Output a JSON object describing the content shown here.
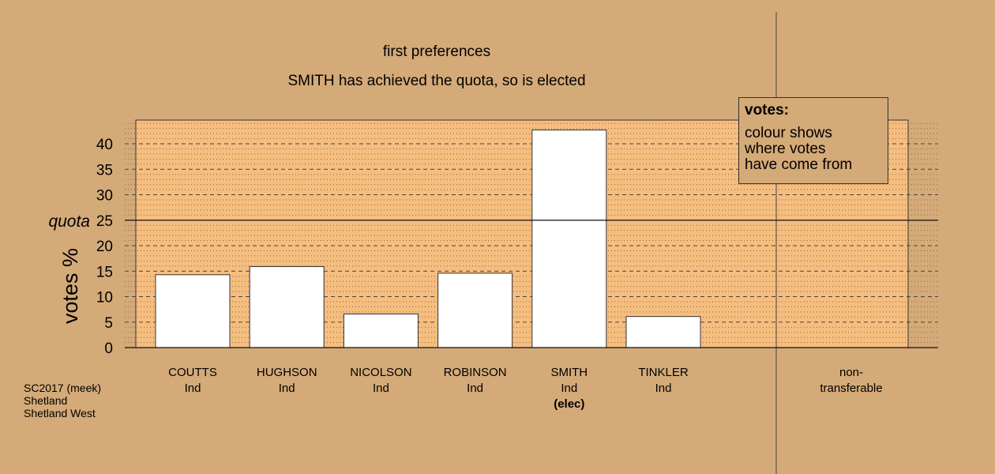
{
  "chart_data": {
    "type": "bar",
    "title": "first preferences",
    "subtitle": "SMITH has achieved the quota, so is elected",
    "ylabel": "votes %",
    "ylim": [
      0,
      45
    ],
    "yticks": [
      0,
      5,
      10,
      15,
      20,
      25,
      30,
      35,
      40
    ],
    "quota": 25,
    "quota_label": "quota",
    "categories": [
      {
        "name": "COUTTS",
        "party": "Ind",
        "note": ""
      },
      {
        "name": "HUGHSON",
        "party": "Ind",
        "note": ""
      },
      {
        "name": "NICOLSON",
        "party": "Ind",
        "note": ""
      },
      {
        "name": "ROBINSON",
        "party": "Ind",
        "note": ""
      },
      {
        "name": "SMITH",
        "party": "Ind",
        "note": "(elec)"
      },
      {
        "name": "TINKLER",
        "party": "Ind",
        "note": ""
      }
    ],
    "values": [
      14.3,
      15.9,
      6.6,
      14.6,
      42.7,
      6.1
    ],
    "nontransferable": {
      "label_line1": "non-",
      "label_line2": "transferable",
      "value": 0
    },
    "grid": true,
    "legend": {
      "title": "votes:",
      "lines": [
        "colour shows",
        "where votes",
        "have come from"
      ],
      "placement": "top-right"
    },
    "colors": {
      "background": "#d4aa78",
      "plot_area": "#f5bd7e",
      "bar": "#ffffff"
    }
  },
  "footer": {
    "source_lines": [
      "SC2017 (meek)",
      "Shetland",
      "Shetland West"
    ]
  }
}
